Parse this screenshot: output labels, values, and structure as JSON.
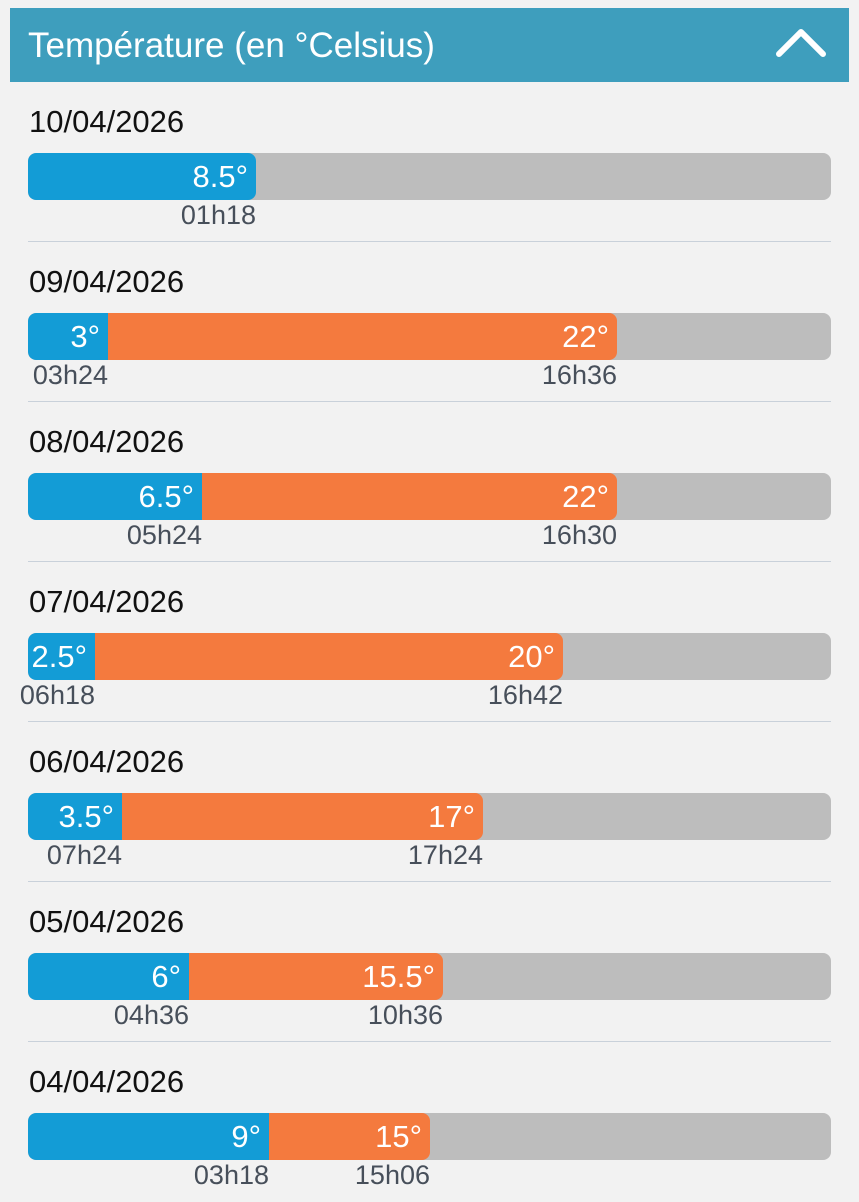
{
  "header": {
    "title": "Température (en °Celsius)",
    "collapse_icon": "chevron-up-icon"
  },
  "colors": {
    "header": "#3e9ebd",
    "min_segment": "#139cd6",
    "max_segment": "#f47a3e",
    "track": "#bdbdbd"
  },
  "scale": {
    "max_temp": 30
  },
  "days": [
    {
      "date": "10/04/2026",
      "min_label": "8.5°",
      "min_value": 8.5,
      "min_time": "01h18",
      "max_label": "",
      "max_value": null,
      "max_time": ""
    },
    {
      "date": "09/04/2026",
      "min_label": "3°",
      "min_value": 3,
      "min_time": "03h24",
      "max_label": "22°",
      "max_value": 22,
      "max_time": "16h36"
    },
    {
      "date": "08/04/2026",
      "min_label": "6.5°",
      "min_value": 6.5,
      "min_time": "05h24",
      "max_label": "22°",
      "max_value": 22,
      "max_time": "16h30"
    },
    {
      "date": "07/04/2026",
      "min_label": "2.5°",
      "min_value": 2.5,
      "min_time": "06h18",
      "max_label": "20°",
      "max_value": 20,
      "max_time": "16h42"
    },
    {
      "date": "06/04/2026",
      "min_label": "3.5°",
      "min_value": 3.5,
      "min_time": "07h24",
      "max_label": "17°",
      "max_value": 17,
      "max_time": "17h24"
    },
    {
      "date": "05/04/2026",
      "min_label": "6°",
      "min_value": 6,
      "min_time": "04h36",
      "max_label": "15.5°",
      "max_value": 15.5,
      "max_time": "10h36"
    },
    {
      "date": "04/04/2026",
      "min_label": "9°",
      "min_value": 9,
      "min_time": "03h18",
      "max_label": "15°",
      "max_value": 15,
      "max_time": "15h06"
    }
  ]
}
